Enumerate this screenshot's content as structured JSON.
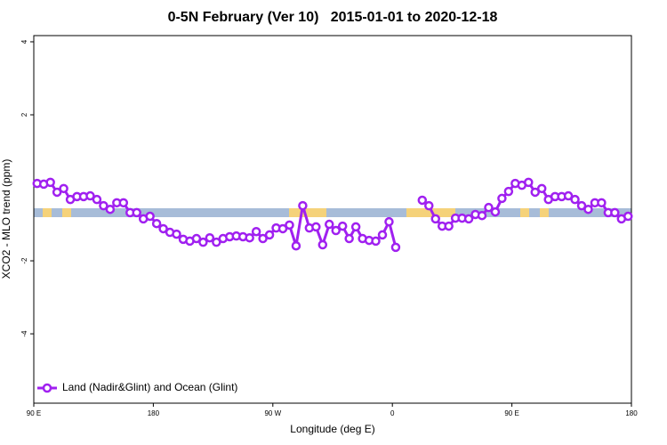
{
  "chart_data": {
    "type": "line",
    "title": "0-5N February (Ver 10)   2015-01-01 to 2020-12-18",
    "x_label": "Longitude (deg E)",
    "y_label": "XCO2 - MLO trend (ppm)",
    "x": [
      92.5,
      97.5,
      102.5,
      107.5,
      112.5,
      117.5,
      122.5,
      127.5,
      132.5,
      137.5,
      142.5,
      147.5,
      152.5,
      157.5,
      162.5,
      167.5,
      172.5,
      177.5,
      182.5,
      187.5,
      192.5,
      197.5,
      202.5,
      207.5,
      212.5,
      217.5,
      222.5,
      227.5,
      232.5,
      237.5,
      242.5,
      247.5,
      252.5,
      257.5,
      262.5,
      267.5,
      272.5,
      277.5,
      282.5,
      287.5,
      292.5,
      297.5,
      302.5,
      307.5,
      312.5,
      317.5,
      322.5,
      327.5,
      332.5,
      337.5,
      342.5,
      347.5,
      352.5,
      357.5,
      362.5,
      367.5,
      372.5,
      377.5,
      382.5,
      387.5,
      392.5,
      397.5,
      402.5,
      407.5,
      412.5,
      417.5,
      422.5,
      427.5,
      432.5,
      437.5,
      442.5,
      447.5,
      452.5,
      457.5,
      462.5,
      467.5,
      472.5,
      477.5,
      482.5,
      487.5,
      492.5,
      497.5,
      502.5,
      507.5,
      512.5,
      517.5,
      522.5,
      527.5,
      532.5,
      537.5
    ],
    "series": [
      {
        "name": "Land (Nadir&Glint) and Ocean (Glint)",
        "color": "#a020f0",
        "values": [
          0.12,
          0.1,
          0.15,
          -0.12,
          -0.02,
          -0.32,
          -0.24,
          -0.24,
          -0.22,
          -0.32,
          -0.49,
          -0.59,
          -0.41,
          -0.41,
          -0.68,
          -0.68,
          -0.85,
          -0.78,
          -0.98,
          -1.12,
          -1.22,
          -1.27,
          -1.41,
          -1.46,
          -1.39,
          -1.49,
          -1.37,
          -1.49,
          -1.39,
          -1.34,
          -1.32,
          -1.34,
          -1.37,
          -1.2,
          -1.39,
          -1.29,
          -1.1,
          -1.12,
          -1.02,
          -1.59,
          -0.49,
          -1.1,
          -1.07,
          -1.56,
          -1.0,
          -1.17,
          -1.05,
          -1.39,
          -1.07,
          -1.39,
          -1.44,
          -1.46,
          -1.29,
          -0.93,
          -1.63,
          null,
          null,
          null,
          -0.34,
          -0.49,
          -0.85,
          -1.05,
          -1.05,
          -0.83,
          -0.83,
          -0.85,
          -0.73,
          -0.76,
          -0.54,
          -0.66,
          -0.29,
          -0.1,
          0.12,
          0.07,
          0.15,
          -0.12,
          -0.02,
          -0.32,
          -0.24,
          -0.24,
          -0.22,
          -0.32,
          -0.49,
          -0.59,
          -0.41,
          -0.41,
          -0.68,
          -0.68,
          -0.85,
          -0.78
        ]
      }
    ],
    "xlim": [
      90,
      540
    ],
    "xticks": [
      {
        "value": 90,
        "label": "90 E"
      },
      180,
      {
        "value": 270,
        "label": "90 W"
      },
      {
        "value": 360,
        "label": "0"
      },
      {
        "value": 450,
        "label": "90 E"
      },
      {
        "value": 540,
        "label": "180"
      }
    ],
    "ylim": [
      -5.9,
      4.17
    ],
    "yticks": [
      -4,
      -2,
      2,
      4
    ],
    "legend": "bottom-left"
  }
}
